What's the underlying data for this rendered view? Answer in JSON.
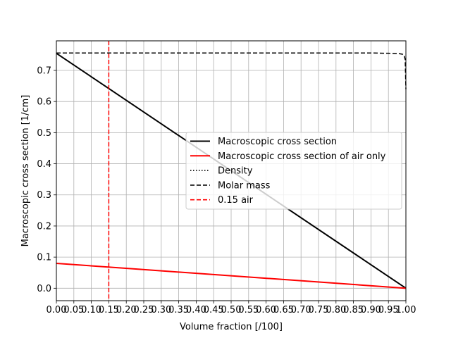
{
  "chart_data": {
    "type": "line",
    "title": "",
    "xlabel": "Volume fraction [/100]",
    "ylabel": "Macroscopic cross section [1/cm]",
    "xlim": [
      0.0,
      1.0
    ],
    "ylim": [
      -0.04,
      0.795
    ],
    "xticks": [
      0.0,
      0.05,
      0.1,
      0.15,
      0.2,
      0.25,
      0.3,
      0.35,
      0.4,
      0.45,
      0.5,
      0.55,
      0.6,
      0.65,
      0.7,
      0.75,
      0.8,
      0.85,
      0.9,
      0.95,
      1.0
    ],
    "xtick_labels": [
      "0.00",
      "0.05",
      "0.10",
      "0.15",
      "0.20",
      "0.25",
      "0.30",
      "0.35",
      "0.40",
      "0.45",
      "0.50",
      "0.55",
      "0.60",
      "0.65",
      "0.70",
      "0.75",
      "0.80",
      "0.85",
      "0.90",
      "0.95",
      "1.00"
    ],
    "yticks": [
      0.0,
      0.1,
      0.2,
      0.3,
      0.4,
      0.5,
      0.6,
      0.7
    ],
    "ytick_labels": [
      "0.0",
      "0.1",
      "0.2",
      "0.3",
      "0.4",
      "0.5",
      "0.6",
      "0.7"
    ],
    "grid": true,
    "legend_position": "center-right",
    "series": [
      {
        "name": "Macroscopic cross section",
        "color": "#000000",
        "style": "solid",
        "x": [
          0.0,
          1.0
        ],
        "y": [
          0.755,
          0.0
        ]
      },
      {
        "name": "Macroscopic cross section of air only",
        "color": "#ff0000",
        "style": "solid",
        "x": [
          0.0,
          1.0
        ],
        "y": [
          0.08,
          0.0
        ]
      },
      {
        "name": "Density",
        "color": "#000000",
        "style": "dotted",
        "x": [],
        "y": []
      },
      {
        "name": "Molar mass",
        "color": "#000000",
        "style": "dashed",
        "x": [
          0.0,
          0.9,
          0.95,
          0.98,
          0.99,
          0.995,
          0.998,
          1.0
        ],
        "y": [
          0.756,
          0.756,
          0.755,
          0.754,
          0.752,
          0.748,
          0.735,
          0.64
        ]
      },
      {
        "name": "0.15 air",
        "color": "#ff0000",
        "style": "dashed",
        "vline_x": 0.15
      }
    ]
  }
}
